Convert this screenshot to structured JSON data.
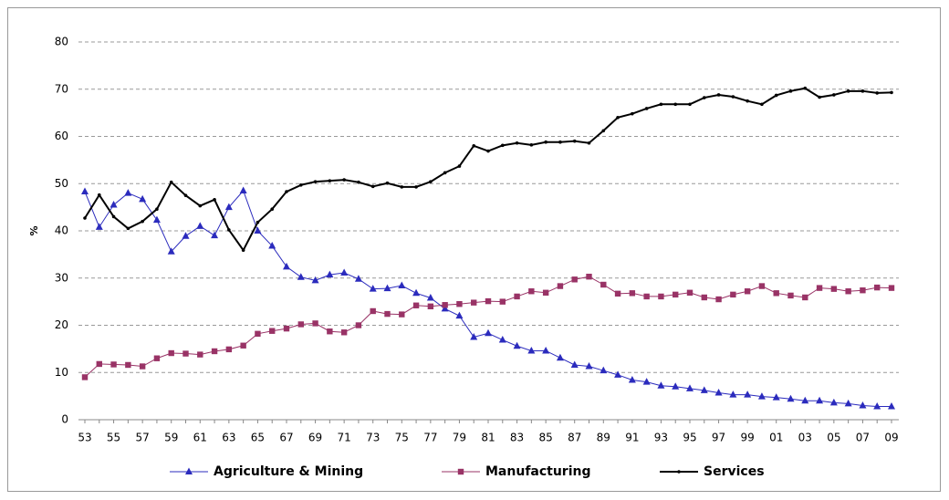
{
  "chart_data": {
    "type": "line",
    "y_label": "%",
    "categories": [
      "53",
      null,
      "55",
      null,
      "57",
      null,
      "59",
      null,
      "61",
      null,
      "63",
      null,
      "65",
      null,
      "67",
      null,
      "69",
      null,
      "71",
      null,
      "73",
      null,
      "75",
      null,
      "77",
      null,
      "79",
      null,
      "81",
      null,
      "83",
      null,
      "85",
      null,
      "87",
      null,
      "89",
      null,
      "91",
      null,
      "93",
      null,
      "95",
      null,
      "97",
      null,
      "99",
      null,
      "01",
      null,
      "03",
      null,
      "05",
      null,
      "07",
      null,
      "09"
    ],
    "series": [
      {
        "name": "Agriculture & Mining",
        "color": "#2b2bbd",
        "marker": "triangle",
        "values": [
          48.3,
          40.8,
          45.5,
          48,
          46.7,
          42.3,
          35.6,
          38.9,
          41,
          39,
          45,
          48.5,
          40,
          36.8,
          32.4,
          30.2,
          29.5,
          30.7,
          31.1,
          29.8,
          27.7,
          27.8,
          28.4,
          26.8,
          25.8,
          23.5,
          22,
          17.5,
          18.3,
          16.9,
          15.6,
          14.6,
          14.6,
          13.1,
          11.6,
          11.3,
          10.4,
          9.5,
          8.4,
          8,
          7.2,
          7,
          6.6,
          6.2,
          5.7,
          5.3,
          5.3,
          4.9,
          4.7,
          4.4,
          4,
          4,
          3.6,
          3.4,
          3,
          2.8,
          2.8
        ]
      },
      {
        "name": "Manufacturing",
        "color": "#993366",
        "marker": "square",
        "values": [
          9,
          11.8,
          11.7,
          11.6,
          11.3,
          13,
          14.1,
          14,
          13.8,
          14.5,
          14.9,
          15.7,
          18.2,
          18.8,
          19.3,
          20.2,
          20.4,
          18.7,
          18.5,
          20,
          23,
          22.4,
          22.3,
          24.2,
          24,
          24.3,
          24.5,
          24.8,
          25.1,
          25,
          26.1,
          27.2,
          26.9,
          28.3,
          29.7,
          30.3,
          28.6,
          26.7,
          26.8,
          26.1,
          26.1,
          26.5,
          26.9,
          25.9,
          25.5,
          26.5,
          27.2,
          28.3,
          26.8,
          26.3,
          25.9,
          27.9,
          27.7,
          27.2,
          27.4,
          28,
          27.9
        ]
      },
      {
        "name": "Services",
        "color": "#000000",
        "marker": "dot",
        "values": [
          42.7,
          47.6,
          43,
          40.5,
          42,
          44.6,
          50.3,
          47.5,
          45.3,
          46.6,
          40.2,
          35.9,
          41.8,
          44.6,
          48.3,
          49.7,
          50.4,
          50.6,
          50.8,
          50.3,
          49.4,
          50.1,
          49.3,
          49.3,
          50.4,
          52.3,
          53.7,
          58,
          56.9,
          58.1,
          58.6,
          58.2,
          58.8,
          58.8,
          59,
          58.6,
          61.2,
          64,
          64.8,
          65.9,
          66.8,
          66.8,
          66.8,
          68.2,
          68.8,
          68.4,
          67.5,
          66.8,
          68.7,
          69.6,
          70.2,
          68.3,
          68.8,
          69.6,
          69.6,
          69.2,
          69.3
        ]
      }
    ],
    "ylim": [
      0,
      80
    ],
    "yticks": [
      0,
      10,
      20,
      30,
      40,
      50,
      60,
      70,
      80
    ],
    "grid": true,
    "legend": "bottom"
  }
}
